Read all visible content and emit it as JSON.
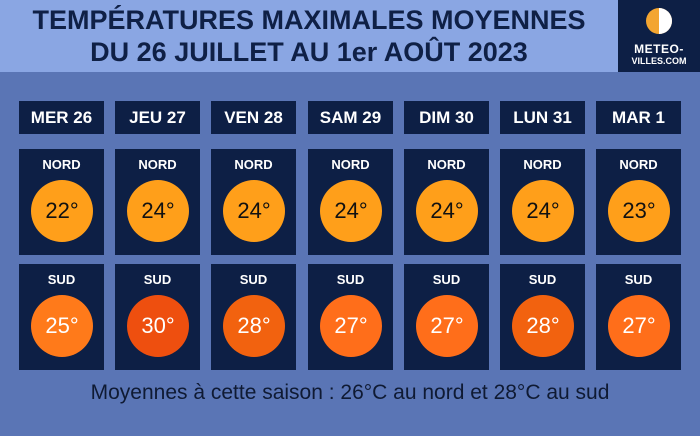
{
  "title_line1": "TEMPÉRATURES MAXIMALES MOYENNES",
  "title_line2": "DU 26 JUILLET AU 1er AOÛT 2023",
  "logo": {
    "line1": "METEO-",
    "line2": "VILLES.COM",
    "icon": "half-sun-moon-icon"
  },
  "north_label": "NORD",
  "south_label": "SUD",
  "days": [
    {
      "label": "MER 26",
      "nord": "22°",
      "sud": "25°",
      "nord_color": "#ff9f1a",
      "sud_color": "#ff7a1a"
    },
    {
      "label": "JEU 27",
      "nord": "24°",
      "sud": "30°",
      "nord_color": "#ff9f1a",
      "sud_color": "#ee4f0f"
    },
    {
      "label": "VEN 28",
      "nord": "24°",
      "sud": "28°",
      "nord_color": "#ff9f1a",
      "sud_color": "#f2620f"
    },
    {
      "label": "SAM 29",
      "nord": "24°",
      "sud": "27°",
      "nord_color": "#ff9f1a",
      "sud_color": "#ff6e1a"
    },
    {
      "label": "DIM 30",
      "nord": "24°",
      "sud": "27°",
      "nord_color": "#ff9f1a",
      "sud_color": "#ff6e1a"
    },
    {
      "label": "LUN 31",
      "nord": "24°",
      "sud": "28°",
      "nord_color": "#ff9f1a",
      "sud_color": "#f2620f"
    },
    {
      "label": "MAR 1",
      "nord": "23°",
      "sud": "27°",
      "nord_color": "#ff9f1a",
      "sud_color": "#ff6e1a"
    }
  ],
  "footer": "Moyennes à cette saison : 26°C au nord et 28°C au sud"
}
